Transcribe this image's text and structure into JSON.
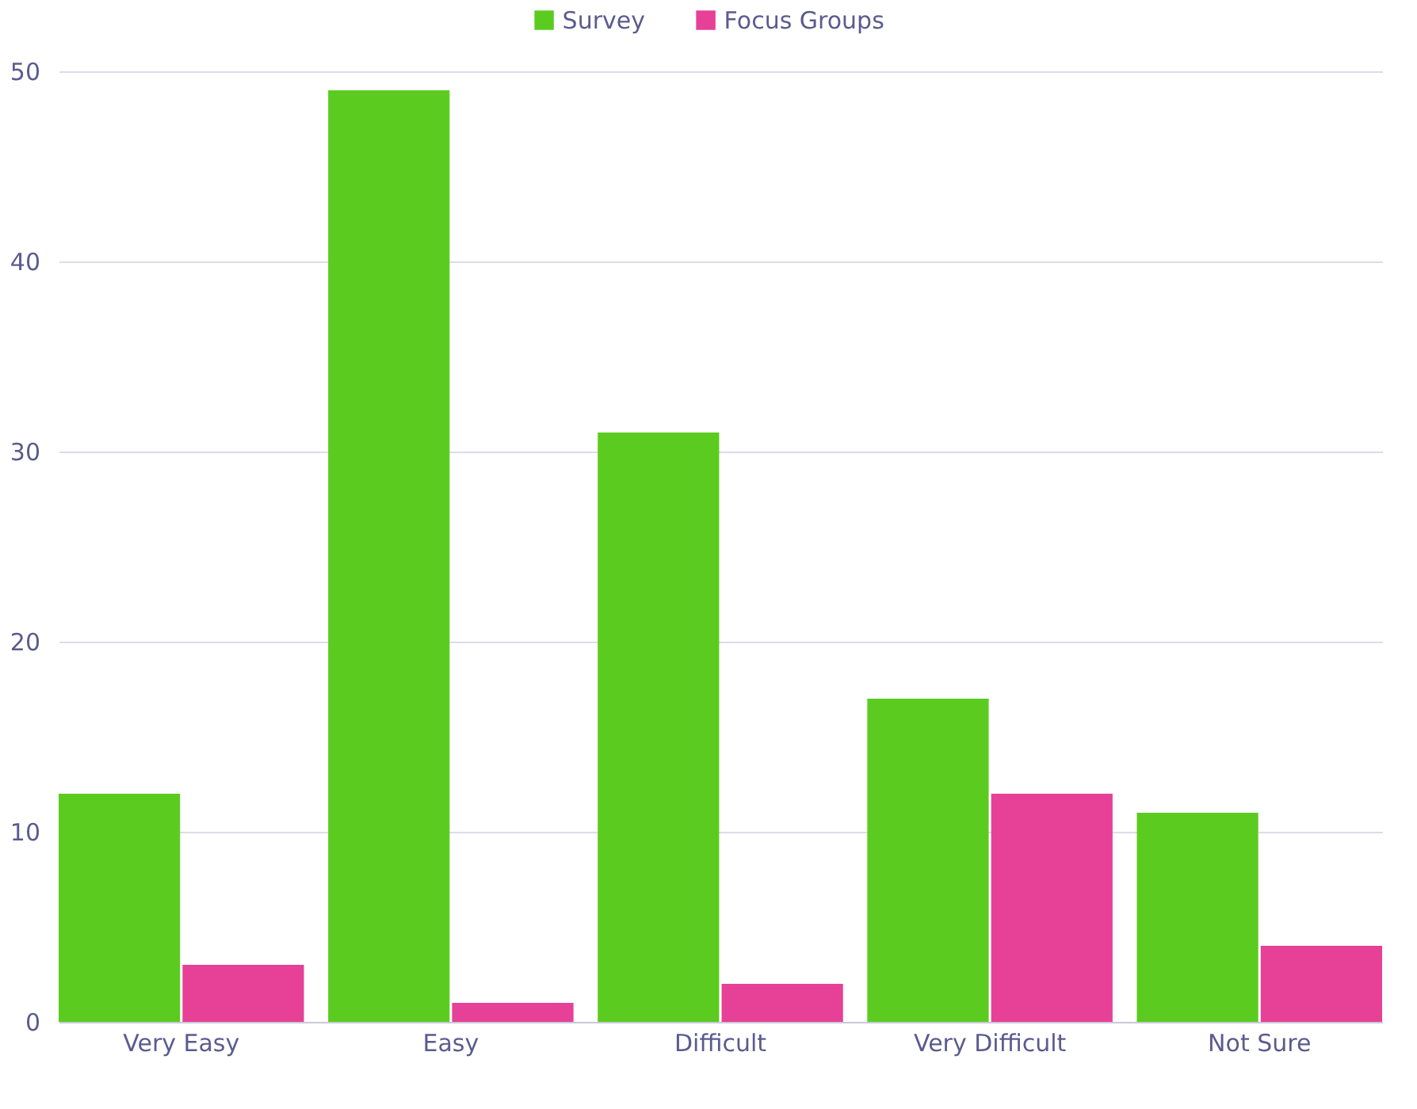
{
  "chart_data": {
    "type": "bar",
    "categories": [
      "Very Easy",
      "Easy",
      "Difficult",
      "Very Difficult",
      "Not Sure"
    ],
    "series": [
      {
        "name": "Survey",
        "color": "#5bcc1f",
        "values": [
          12,
          49,
          31,
          17,
          11
        ]
      },
      {
        "name": "Focus Groups",
        "color": "#e64097",
        "values": [
          3,
          1,
          2,
          12,
          4
        ]
      }
    ],
    "ylim": [
      0,
      50
    ],
    "yticks": [
      0,
      10,
      20,
      30,
      40,
      50
    ],
    "grid": "y",
    "legend": "top"
  }
}
